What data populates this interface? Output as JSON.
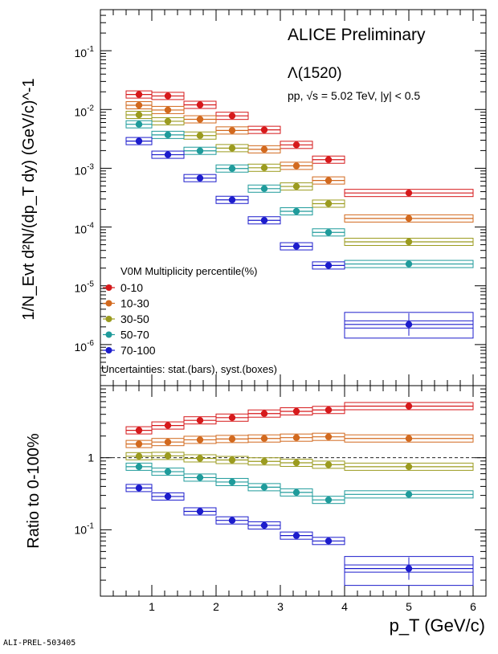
{
  "footer": {
    "ref": "ALI-PREL-503405"
  },
  "chart_data": [
    {
      "type": "scatter",
      "panel": "spectra",
      "title": "ALICE Preliminary",
      "particle": "Λ(1520)",
      "system_text": "pp, √s = 5.02 TeV, |y| < 0.5",
      "ylabel": "1/N_Evt d²N/(dp_T dy) (GeV/c)^-1",
      "xlabel": "",
      "yscale": "log",
      "xlim": [
        0.2,
        6.2
      ],
      "ylim": [
        2e-07,
        0.5
      ],
      "ytick_labels": [
        "10^-6",
        "10^-5",
        "10^-4",
        "10^-3",
        "10^-2",
        "10^-1"
      ],
      "legend_title": "V0M Multiplicity percentile(%)",
      "legend_note": "Uncertainties: stat.(bars), syst.(boxes)",
      "legend_position": "bottom-left",
      "bins": [
        [
          0.6,
          1.0
        ],
        [
          1.0,
          1.5
        ],
        [
          1.5,
          2.0
        ],
        [
          2.0,
          2.5
        ],
        [
          2.5,
          3.0
        ],
        [
          3.0,
          3.5
        ],
        [
          3.5,
          4.0
        ],
        [
          4.0,
          6.0
        ]
      ],
      "x": [
        0.8,
        1.25,
        1.75,
        2.25,
        2.75,
        3.25,
        3.75,
        5.0
      ],
      "series": [
        {
          "name": "0-10",
          "color": "#d6191b",
          "values": [
            0.018,
            0.017,
            0.012,
            0.0078,
            0.0045,
            0.0025,
            0.0014,
            0.00038
          ]
        },
        {
          "name": "10-30",
          "color": "#d2691e",
          "values": [
            0.0118,
            0.0098,
            0.0068,
            0.0044,
            0.0021,
            0.0011,
            0.00062,
            0.00014
          ]
        },
        {
          "name": "30-50",
          "color": "#9b9b1f",
          "values": [
            0.0081,
            0.0063,
            0.0036,
            0.0022,
            0.00102,
            0.00049,
            0.00025,
            5.6e-05
          ]
        },
        {
          "name": "50-70",
          "color": "#1f9b9b",
          "values": [
            0.0056,
            0.0037,
            0.00198,
            0.00099,
            0.00045,
            0.000185,
            8.1e-05,
            2.35e-05
          ]
        },
        {
          "name": "70-100",
          "color": "#1c1ccc",
          "values": [
            0.0029,
            0.0017,
            0.00068,
            0.00029,
            0.00013,
            4.7e-05,
            2.22e-05,
            2.2e-06
          ]
        }
      ]
    },
    {
      "type": "scatter",
      "panel": "ratio",
      "ylabel": "Ratio to 0-100%",
      "xlabel": "p_T (GeV/c)",
      "yscale": "log",
      "xlim": [
        0.2,
        6.2
      ],
      "ylim": [
        0.012,
        10
      ],
      "ytick_labels": [
        "10^-1",
        "1"
      ],
      "xtick_labels": [
        "1",
        "2",
        "3",
        "4",
        "5",
        "6"
      ],
      "reference_line": 1,
      "series": [
        {
          "name": "0-10",
          "color": "#d6191b",
          "values": [
            2.4,
            2.8,
            3.3,
            3.6,
            4.1,
            4.4,
            4.6,
            5.2
          ]
        },
        {
          "name": "10-30",
          "color": "#d2691e",
          "values": [
            1.55,
            1.65,
            1.77,
            1.82,
            1.85,
            1.9,
            1.95,
            1.85
          ]
        },
        {
          "name": "30-50",
          "color": "#9b9b1f",
          "values": [
            1.05,
            1.06,
            0.98,
            0.93,
            0.89,
            0.85,
            0.8,
            0.75
          ]
        },
        {
          "name": "50-70",
          "color": "#1f9b9b",
          "values": [
            0.75,
            0.64,
            0.53,
            0.46,
            0.39,
            0.33,
            0.26,
            0.31
          ]
        },
        {
          "name": "70-100",
          "color": "#1c1ccc",
          "values": [
            0.38,
            0.29,
            0.18,
            0.135,
            0.115,
            0.083,
            0.07,
            0.029
          ]
        }
      ]
    }
  ]
}
